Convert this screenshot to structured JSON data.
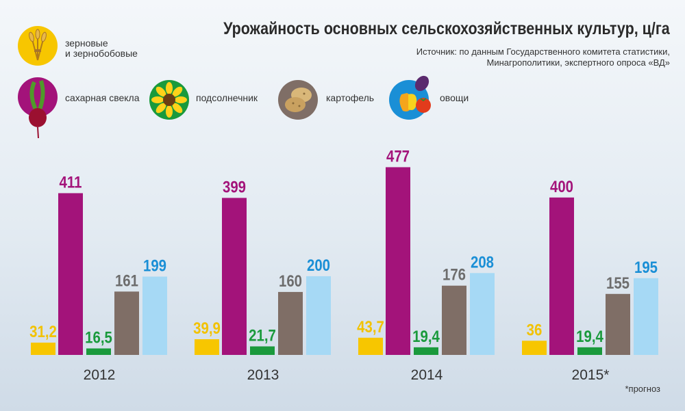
{
  "title": "Урожайность основных сельскохозяйственных культур, ц/га",
  "source_line1": "Источник: по данным Государственного комитета статистики,",
  "source_line2": "Минагрополитики, экспертного опроса «ВД»",
  "footnote": "*прогноз",
  "legend": [
    {
      "label": "зерновые и зернобобовые",
      "label_line1": "зерновые",
      "label_line2": "и зернобобовые",
      "icon": "wheat-icon",
      "color": "#f7c600"
    },
    {
      "label": "сахарная свекла",
      "icon": "beet-icon",
      "color": "#a3137a"
    },
    {
      "label": "подсолнечник",
      "icon": "sunflower-icon",
      "color": "#1a9a3c"
    },
    {
      "label": "картофель",
      "icon": "potato-icon",
      "color": "#7f6e66"
    },
    {
      "label": "овощи",
      "icon": "vegetables-icon",
      "color": "#a6d9f5"
    }
  ],
  "chart_data": {
    "type": "bar",
    "categories": [
      "2012",
      "2013",
      "2014",
      "2015*"
    ],
    "series": [
      {
        "name": "зерновые и зернобобовые",
        "color": "#f7c600",
        "label_color": "#f2c200",
        "values": [
          31.2,
          39.9,
          43.7,
          36
        ],
        "labels": [
          "31,2",
          "39,9",
          "43,7",
          "36"
        ]
      },
      {
        "name": "сахарная свекла",
        "color": "#a3137a",
        "label_color": "#a3137a",
        "values": [
          411,
          399,
          477,
          400
        ],
        "labels": [
          "411",
          "399",
          "477",
          "400"
        ]
      },
      {
        "name": "подсолнечник",
        "color": "#1a9a3c",
        "label_color": "#1a9a3c",
        "values": [
          16.5,
          21.7,
          19.4,
          19.4
        ],
        "labels": [
          "16,5",
          "21,7",
          "19,4",
          "19,4"
        ]
      },
      {
        "name": "картофель",
        "color": "#7f6e66",
        "label_color": "#6d6d6d",
        "values": [
          161,
          160,
          176,
          155
        ],
        "labels": [
          "161",
          "160",
          "176",
          "155"
        ]
      },
      {
        "name": "овощи",
        "color": "#a6d9f5",
        "label_color": "#1a8fd6",
        "values": [
          199,
          200,
          208,
          195
        ],
        "labels": [
          "199",
          "200",
          "208",
          "195"
        ]
      }
    ],
    "unit": "ц/га",
    "grid": false,
    "legend_position": "top-left"
  }
}
